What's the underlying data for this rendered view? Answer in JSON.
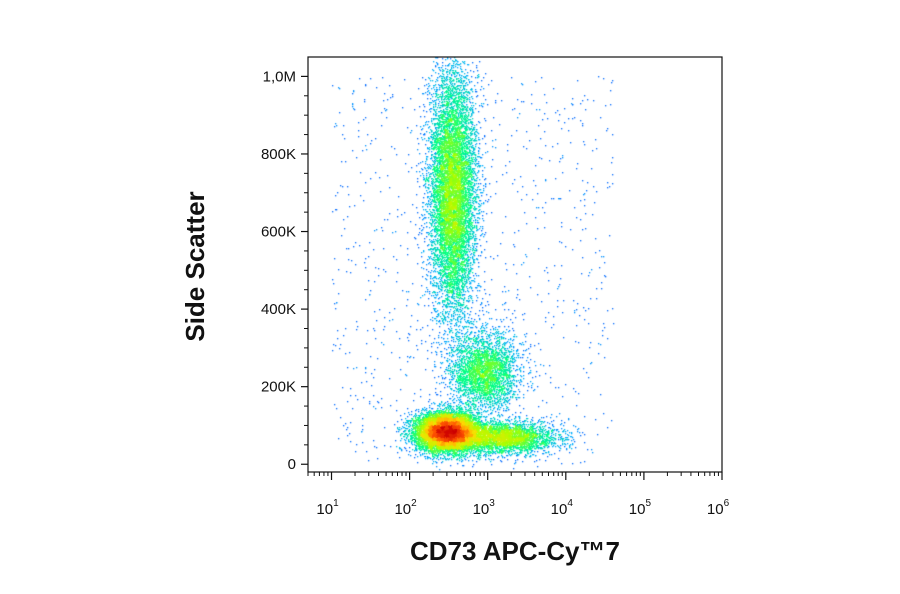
{
  "chart_data": {
    "type": "scatter",
    "title": "",
    "xlabel": "CD73 APC-Cy™7",
    "ylabel": "Side Scatter",
    "x_scale": "log",
    "xlim": [
      5,
      1000000
    ],
    "ylim": [
      -20000,
      1050000
    ],
    "x_ticks": [
      {
        "value": 10,
        "base": "10",
        "exp": "1"
      },
      {
        "value": 100,
        "base": "10",
        "exp": "2"
      },
      {
        "value": 1000,
        "base": "10",
        "exp": "3"
      },
      {
        "value": 10000,
        "base": "10",
        "exp": "4"
      },
      {
        "value": 100000,
        "base": "10",
        "exp": "5"
      },
      {
        "value": 1000000,
        "base": "10",
        "exp": "6"
      }
    ],
    "y_ticks": [
      {
        "value": 0,
        "label": "0"
      },
      {
        "value": 200000,
        "label": "200K"
      },
      {
        "value": 400000,
        "label": "400K"
      },
      {
        "value": 600000,
        "label": "600K"
      },
      {
        "value": 800000,
        "label": "800K"
      },
      {
        "value": 1000000,
        "label": "1,0M"
      }
    ],
    "grid": false,
    "colormap": [
      "#0000ff",
      "#00aaff",
      "#00ff88",
      "#aaff00",
      "#ffdd00",
      "#ff5500",
      "#cc0000"
    ],
    "populations": [
      {
        "center_x": 300,
        "center_y": 85000,
        "spread_x_decades": 0.2,
        "spread_y": 25000,
        "count": 9000
      },
      {
        "center_x": 1500,
        "center_y": 70000,
        "spread_x_decades": 0.35,
        "spread_y": 20000,
        "count": 3500
      },
      {
        "center_x": 350,
        "center_y": 700000,
        "spread_x_decades": 0.15,
        "spread_y": 160000,
        "count": 9000
      },
      {
        "center_x": 900,
        "center_y": 240000,
        "spread_x_decades": 0.22,
        "spread_y": 50000,
        "count": 3000
      }
    ]
  }
}
